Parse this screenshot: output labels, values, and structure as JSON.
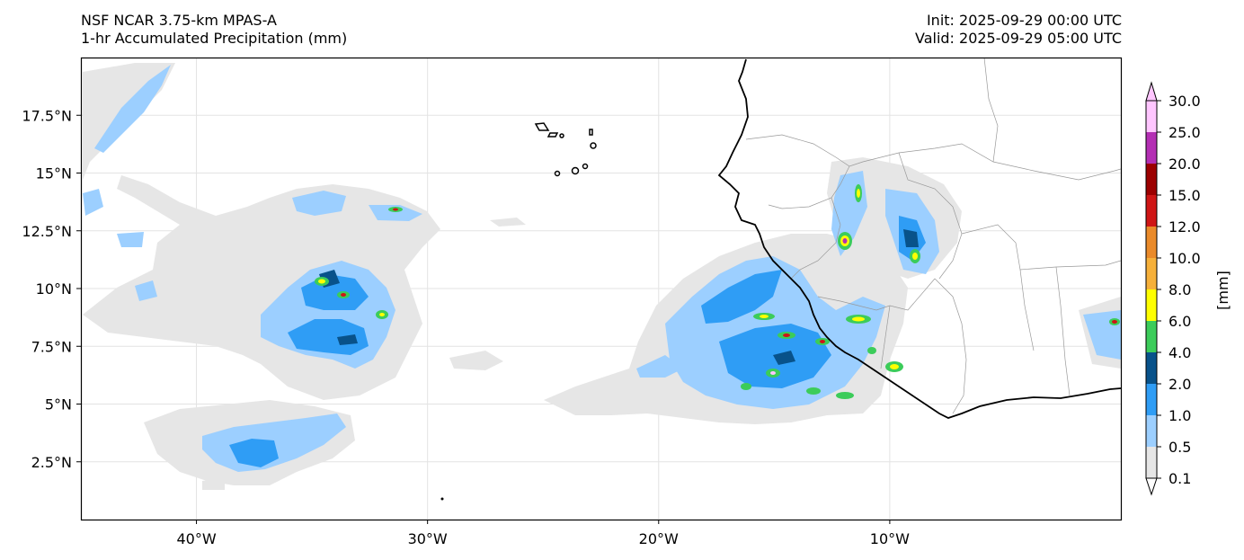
{
  "header": {
    "model": "NSF NCAR 3.75-km MPAS-A",
    "field": "1-hr Accumulated Precipitation (mm)",
    "init": "Init: 2025-09-29 00:00 UTC",
    "valid": "Valid: 2025-09-29 05:00 UTC"
  },
  "map": {
    "lon_range": [
      -45,
      0
    ],
    "lat_range": [
      0,
      20
    ],
    "lon_ticks": [
      {
        "value": -40,
        "label": "40°W"
      },
      {
        "value": -30,
        "label": "30°W"
      },
      {
        "value": -20,
        "label": "20°W"
      },
      {
        "value": -10,
        "label": "10°W"
      }
    ],
    "lat_ticks": [
      {
        "value": 2.5,
        "label": "2.5°N"
      },
      {
        "value": 5,
        "label": "5°N"
      },
      {
        "value": 7.5,
        "label": "7.5°N"
      },
      {
        "value": 10,
        "label": "10°N"
      },
      {
        "value": 12.5,
        "label": "12.5°N"
      },
      {
        "value": 15,
        "label": "15°N"
      },
      {
        "value": 17.5,
        "label": "17.5°N"
      }
    ]
  },
  "colorbar": {
    "unit_label": "[mm]",
    "levels": [
      "0.1",
      "0.5",
      "1.0",
      "2.0",
      "4.0",
      "6.0",
      "8.0",
      "10.0",
      "12.0",
      "15.0",
      "20.0",
      "25.0",
      "30.0"
    ],
    "colors": [
      "#e6e6e6",
      "#9ccfff",
      "#2f9df5",
      "#08528a",
      "#3ccc5a",
      "#ffff00",
      "#f6b03a",
      "#ea8a2a",
      "#cf1515",
      "#9c0000",
      "#b42fb4",
      "#ffc6ff"
    ]
  }
}
